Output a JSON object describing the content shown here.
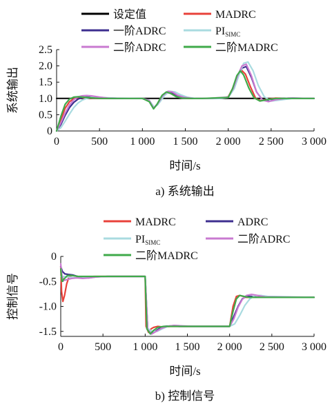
{
  "colors": {
    "setpoint": "#000000",
    "MADRC": "#e8413a",
    "ADRC": "#3d2e8f",
    "PI": "#a9dbe0",
    "ADRC2": "#c97ad0",
    "MADRC2": "#3faa4a"
  },
  "chart_data": [
    {
      "type": "line",
      "caption": "a) 系统输出",
      "xlabel": "时间/s",
      "ylabel": "系统输出",
      "xlim": [
        0,
        3000
      ],
      "ylim": [
        0,
        2.5
      ],
      "xticks": [
        0,
        500,
        1000,
        1500,
        2000,
        2500,
        3000
      ],
      "xtick_labels": [
        "0",
        "500",
        "1 000",
        "1 500",
        "2 000",
        "2 500",
        "3 000"
      ],
      "yticks": [
        0,
        0.5,
        1.0,
        1.5,
        2.0,
        2.5
      ],
      "ytick_labels": [
        "0",
        "0.5",
        "1.0",
        "1.5",
        "2.0",
        "2.5"
      ],
      "grid": false,
      "legend_position": "top",
      "series": [
        {
          "key": "setpoint",
          "name": "设定值",
          "name_sub": "",
          "x": [
            0,
            3000
          ],
          "y": [
            1.0,
            1.0
          ]
        },
        {
          "key": "MADRC",
          "name": "MADRC",
          "name_sub": "",
          "x": [
            0,
            50,
            100,
            150,
            200,
            250,
            300,
            400,
            500,
            700,
            1000,
            1080,
            1130,
            1170,
            1220,
            1280,
            1320,
            1380,
            1450,
            1550,
            1700,
            1900,
            2000,
            2050,
            2100,
            2150,
            2200,
            2260,
            2320,
            2380,
            2450,
            2550,
            2700,
            3000
          ],
          "y": [
            0,
            0.35,
            0.7,
            0.9,
            0.99,
            1.02,
            1.02,
            1.01,
            1.0,
            1.0,
            1.0,
            0.92,
            0.7,
            0.8,
            1.05,
            1.18,
            1.17,
            1.08,
            1.02,
            1.0,
            1.0,
            1.0,
            1.05,
            1.3,
            1.65,
            1.88,
            1.75,
            1.35,
            1.0,
            0.93,
            0.97,
            1.01,
            1.0,
            1.0
          ]
        },
        {
          "key": "ADRC",
          "name": "ADRC",
          "name_sub": "",
          "legend_prefix": "一阶",
          "x": [
            0,
            50,
            100,
            150,
            200,
            250,
            300,
            350,
            400,
            500,
            700,
            1000,
            1080,
            1130,
            1180,
            1230,
            1290,
            1340,
            1400,
            1480,
            1580,
            1700,
            1900,
            2000,
            2060,
            2110,
            2160,
            2210,
            2270,
            2330,
            2400,
            2480,
            2600,
            2750,
            3000
          ],
          "y": [
            0,
            0.2,
            0.48,
            0.72,
            0.88,
            0.98,
            1.03,
            1.04,
            1.03,
            1.01,
            1.0,
            1.0,
            0.93,
            0.71,
            0.82,
            1.05,
            1.2,
            1.19,
            1.1,
            1.03,
            1.0,
            1.0,
            1.0,
            1.04,
            1.3,
            1.65,
            1.93,
            1.98,
            1.65,
            1.2,
            0.95,
            0.93,
            1.0,
            1.01,
            1.0
          ]
        },
        {
          "key": "PI",
          "name": "PI",
          "name_sub": "SIMC",
          "x": [
            0,
            50,
            100,
            150,
            200,
            250,
            300,
            350,
            400,
            450,
            500,
            700,
            1000,
            1080,
            1140,
            1200,
            1260,
            1320,
            1380,
            1440,
            1520,
            1620,
            1750,
            1900,
            2000,
            2070,
            2130,
            2180,
            2230,
            2290,
            2350,
            2420,
            2500,
            2600,
            2750,
            3000
          ],
          "y": [
            0,
            0.1,
            0.3,
            0.52,
            0.72,
            0.86,
            0.95,
            1.0,
            1.03,
            1.04,
            1.03,
            1.01,
            1.0,
            0.94,
            0.72,
            0.88,
            1.1,
            1.22,
            1.2,
            1.12,
            1.04,
            1.0,
            1.0,
            1.0,
            1.03,
            1.3,
            1.75,
            2.08,
            2.12,
            1.85,
            1.4,
            1.05,
            0.92,
            0.95,
            1.0,
            1.0
          ]
        },
        {
          "key": "ADRC2",
          "name": "ADRC",
          "name_sub": "",
          "legend_prefix": "二阶",
          "x": [
            0,
            50,
            100,
            150,
            200,
            250,
            300,
            350,
            400,
            500,
            600,
            800,
            1000,
            1080,
            1130,
            1180,
            1240,
            1300,
            1350,
            1410,
            1490,
            1600,
            1750,
            2000,
            2060,
            2110,
            2160,
            2210,
            2270,
            2330,
            2400,
            2470,
            2550,
            2700,
            3000
          ],
          "y": [
            0,
            0.25,
            0.55,
            0.8,
            0.96,
            1.05,
            1.08,
            1.09,
            1.08,
            1.04,
            1.01,
            1.0,
            1.0,
            0.93,
            0.7,
            0.85,
            1.1,
            1.22,
            1.2,
            1.1,
            1.03,
            1.0,
            1.0,
            1.04,
            1.32,
            1.7,
            2.0,
            2.05,
            1.7,
            1.2,
            0.95,
            0.9,
            0.96,
            1.01,
            1.0
          ]
        },
        {
          "key": "MADRC2",
          "name": "MADRC",
          "name_sub": "",
          "legend_prefix": "二阶",
          "x": [
            0,
            50,
            100,
            150,
            200,
            250,
            300,
            400,
            500,
            700,
            1000,
            1080,
            1130,
            1170,
            1230,
            1280,
            1330,
            1390,
            1460,
            1560,
            1700,
            2000,
            2050,
            2100,
            2140,
            2180,
            2240,
            2300,
            2370,
            2450,
            2550,
            2700,
            3000
          ],
          "y": [
            0,
            0.45,
            0.82,
            0.98,
            1.04,
            1.05,
            1.04,
            1.02,
            1.0,
            1.0,
            1.0,
            0.9,
            0.68,
            0.82,
            1.1,
            1.2,
            1.15,
            1.06,
            1.01,
            1.0,
            1.0,
            1.03,
            1.3,
            1.7,
            1.85,
            1.72,
            1.32,
            1.02,
            0.92,
            0.96,
            1.0,
            1.0,
            1.0
          ]
        }
      ]
    },
    {
      "type": "line",
      "caption": "b) 控制信号",
      "xlabel": "时间/s",
      "ylabel": "控制信号",
      "xlim": [
        0,
        3000
      ],
      "ylim": [
        -1.6,
        0
      ],
      "xticks": [
        0,
        500,
        1000,
        1500,
        2000,
        2500,
        3000
      ],
      "xtick_labels": [
        "0",
        "500",
        "1 000",
        "1 500",
        "2 000",
        "2 500",
        "3 000"
      ],
      "yticks": [
        0,
        -0.5,
        -1.0,
        -1.5
      ],
      "ytick_labels": [
        "0",
        "-0.5",
        "-1.0",
        "-1.5"
      ],
      "grid": false,
      "legend_position": "top",
      "series": [
        {
          "key": "MADRC",
          "name": "MADRC",
          "name_sub": "",
          "x": [
            0,
            10,
            25,
            45,
            70,
            100,
            140,
            200,
            280,
            400,
            600,
            990,
            1000,
            1010,
            1040,
            1070,
            1100,
            1150,
            1200,
            1300,
            1500,
            1990,
            2000,
            2040,
            2080,
            2120,
            2160,
            2200,
            2300,
            2500,
            3000
          ],
          "y": [
            -0.2,
            -0.7,
            -0.9,
            -0.78,
            -0.55,
            -0.4,
            -0.38,
            -0.4,
            -0.41,
            -0.4,
            -0.4,
            -0.4,
            -0.4,
            -1.4,
            -1.52,
            -1.45,
            -1.42,
            -1.4,
            -1.41,
            -1.4,
            -1.4,
            -1.4,
            -1.4,
            -1.0,
            -0.8,
            -0.78,
            -0.8,
            -0.82,
            -0.82,
            -0.82,
            -0.82
          ]
        },
        {
          "key": "ADRC",
          "name": "ADRC",
          "name_sub": "",
          "x": [
            0,
            20,
            50,
            90,
            140,
            200,
            260,
            330,
            420,
            550,
            990,
            1000,
            1030,
            1070,
            1120,
            1170,
            1230,
            1300,
            1400,
            1600,
            1990,
            2000,
            2050,
            2100,
            2150,
            2200,
            2260,
            2330,
            2450,
            3000
          ],
          "y": [
            -0.2,
            -0.3,
            -0.35,
            -0.36,
            -0.37,
            -0.4,
            -0.42,
            -0.43,
            -0.41,
            -0.4,
            -0.4,
            -0.4,
            -1.45,
            -1.55,
            -1.5,
            -1.44,
            -1.4,
            -1.39,
            -1.4,
            -1.4,
            -1.4,
            -1.4,
            -1.2,
            -1.0,
            -0.85,
            -0.8,
            -0.8,
            -0.82,
            -0.82,
            -0.82
          ]
        },
        {
          "key": "PI",
          "name": "PI",
          "name_sub": "SIMC",
          "x": [
            0,
            30,
            70,
            120,
            180,
            250,
            330,
            420,
            550,
            990,
            1000,
            1030,
            1080,
            1140,
            1200,
            1270,
            1350,
            1450,
            1600,
            1990,
            2000,
            2060,
            2120,
            2180,
            2240,
            2300,
            2370,
            2450,
            3000
          ],
          "y": [
            -0.4,
            -0.4,
            -0.41,
            -0.42,
            -0.43,
            -0.43,
            -0.42,
            -0.41,
            -0.4,
            -0.4,
            -0.4,
            -1.44,
            -1.5,
            -1.5,
            -1.45,
            -1.4,
            -1.38,
            -1.39,
            -1.4,
            -1.4,
            -1.4,
            -1.35,
            -1.18,
            -0.98,
            -0.85,
            -0.78,
            -0.78,
            -0.8,
            -0.82
          ]
        },
        {
          "key": "ADRC2",
          "name": "ADRC",
          "name_sub": "",
          "legend_prefix": "二阶",
          "x": [
            0,
            15,
            40,
            80,
            130,
            190,
            260,
            340,
            430,
            560,
            990,
            1000,
            1030,
            1080,
            1130,
            1190,
            1260,
            1340,
            1440,
            1600,
            1990,
            2000,
            2050,
            2100,
            2150,
            2200,
            2260,
            2330,
            2420,
            3000
          ],
          "y": [
            -0.15,
            -0.4,
            -0.48,
            -0.46,
            -0.44,
            -0.43,
            -0.44,
            -0.43,
            -0.41,
            -0.4,
            -0.4,
            -0.4,
            -1.47,
            -1.55,
            -1.5,
            -1.44,
            -1.4,
            -1.38,
            -1.39,
            -1.4,
            -1.4,
            -1.4,
            -1.25,
            -1.02,
            -0.86,
            -0.78,
            -0.76,
            -0.78,
            -0.81,
            -0.82
          ]
        },
        {
          "key": "MADRC2",
          "name": "MADRC",
          "name_sub": "",
          "legend_prefix": "二阶",
          "x": [
            0,
            15,
            40,
            80,
            130,
            200,
            300,
            450,
            990,
            1000,
            1020,
            1060,
            1100,
            1150,
            1220,
            1300,
            1450,
            1990,
            2000,
            2040,
            2080,
            2120,
            2170,
            2230,
            2350,
            3000
          ],
          "y": [
            -0.25,
            -0.5,
            -0.45,
            -0.38,
            -0.38,
            -0.4,
            -0.4,
            -0.4,
            -0.4,
            -0.4,
            -1.45,
            -1.55,
            -1.48,
            -1.42,
            -1.4,
            -1.4,
            -1.4,
            -1.4,
            -1.4,
            -1.1,
            -0.85,
            -0.78,
            -0.8,
            -0.82,
            -0.82,
            -0.82
          ]
        }
      ]
    }
  ]
}
